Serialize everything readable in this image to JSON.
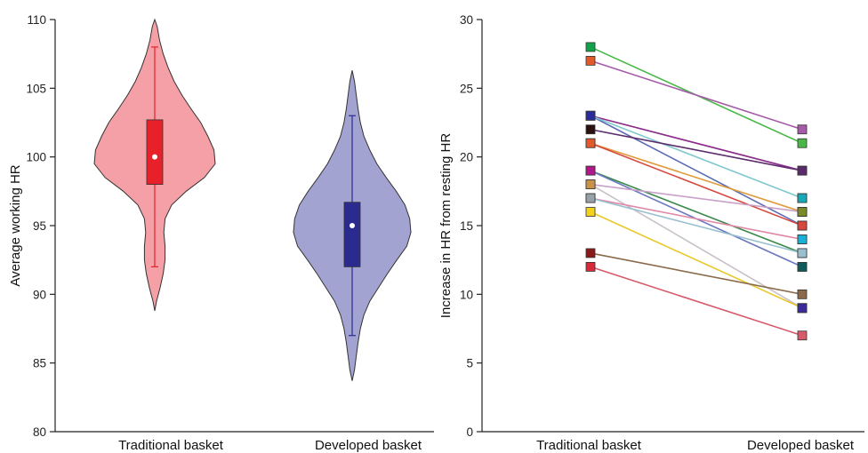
{
  "chart_data": [
    {
      "type": "violin",
      "ylabel": "Average working HR",
      "ylim": [
        80,
        110
      ],
      "yticks": [
        80,
        85,
        90,
        95,
        100,
        105,
        110
      ],
      "categories": [
        "Traditional basket",
        "Developed basket"
      ],
      "groups": [
        {
          "name": "Traditional basket",
          "fill_color": "#f4a0a6",
          "box_color": "#e8202a",
          "median": 100,
          "q1": 98,
          "q3": 102.7,
          "whisker_low": 92,
          "whisker_high": 108,
          "min": 88.8,
          "max": 110,
          "density": [
            [
              88.8,
              0.0
            ],
            [
              89.5,
              0.03
            ],
            [
              90.5,
              0.09
            ],
            [
              91.5,
              0.14
            ],
            [
              92.5,
              0.17
            ],
            [
              93.5,
              0.17
            ],
            [
              94.5,
              0.15
            ],
            [
              95.5,
              0.17
            ],
            [
              96.5,
              0.28
            ],
            [
              97.5,
              0.52
            ],
            [
              98.5,
              0.82
            ],
            [
              99.5,
              1.0
            ],
            [
              100.5,
              0.98
            ],
            [
              101.5,
              0.88
            ],
            [
              102.5,
              0.76
            ],
            [
              103.5,
              0.6
            ],
            [
              104.5,
              0.45
            ],
            [
              105.5,
              0.32
            ],
            [
              106.5,
              0.22
            ],
            [
              107.5,
              0.14
            ],
            [
              108.5,
              0.08
            ],
            [
              109.5,
              0.04
            ],
            [
              110,
              0.0
            ]
          ]
        },
        {
          "name": "Developed basket",
          "fill_color": "#a3a3d1",
          "box_color": "#2b2b8f",
          "median": 95,
          "q1": 92,
          "q3": 96.7,
          "whisker_low": 87,
          "whisker_high": 103,
          "min": 83.7,
          "max": 106.3,
          "density": [
            [
              83.7,
              0.0
            ],
            [
              84.5,
              0.04
            ],
            [
              85.5,
              0.07
            ],
            [
              86.5,
              0.1
            ],
            [
              87.5,
              0.14
            ],
            [
              88.5,
              0.2
            ],
            [
              89.5,
              0.3
            ],
            [
              90.5,
              0.45
            ],
            [
              91.5,
              0.6
            ],
            [
              92.5,
              0.76
            ],
            [
              93.5,
              0.93
            ],
            [
              94.5,
              1.0
            ],
            [
              95.5,
              0.98
            ],
            [
              96.5,
              0.9
            ],
            [
              97.5,
              0.75
            ],
            [
              98.5,
              0.58
            ],
            [
              99.5,
              0.42
            ],
            [
              100.5,
              0.3
            ],
            [
              101.5,
              0.2
            ],
            [
              102.5,
              0.14
            ],
            [
              103.5,
              0.1
            ],
            [
              104.5,
              0.07
            ],
            [
              105.5,
              0.04
            ],
            [
              106.3,
              0.0
            ]
          ]
        }
      ]
    },
    {
      "type": "line",
      "ylabel": "Increase in HR from resting  HR",
      "ylim": [
        0,
        30
      ],
      "yticks": [
        0,
        5,
        10,
        15,
        20,
        25,
        30
      ],
      "categories": [
        "Traditional basket",
        "Developed basket"
      ],
      "series": [
        {
          "values": [
            28,
            21
          ],
          "line_color": "#49b847",
          "marker_color": "#12a34a"
        },
        {
          "values": [
            27,
            22
          ],
          "line_color": "#a55ba8",
          "marker_color": "#e2592b"
        },
        {
          "values": [
            23,
            19
          ],
          "line_color": "#8a2b8a",
          "marker_color": "#2b2b9a"
        },
        {
          "values": [
            23,
            15
          ],
          "line_color": "#5b6bb3",
          "marker_color": "#2b2b9a"
        },
        {
          "values": [
            23,
            17
          ],
          "line_color": "#7fc9cf",
          "marker_color": "#2b2b9a"
        },
        {
          "values": [
            22,
            19
          ],
          "line_color": "#5a2a6b",
          "marker_color": "#2a1010"
        },
        {
          "values": [
            21,
            16
          ],
          "line_color": "#e09a3a",
          "marker_color": "#e2592b"
        },
        {
          "values": [
            21,
            15
          ],
          "line_color": "#d6473e",
          "marker_color": "#e2592b"
        },
        {
          "values": [
            19,
            13
          ],
          "line_color": "#3a8a4a",
          "marker_color": "#b0188a"
        },
        {
          "values": [
            19,
            12
          ],
          "line_color": "#6a78c0",
          "marker_color": "#b0188a"
        },
        {
          "values": [
            18,
            16
          ],
          "line_color": "#c8a0c8",
          "marker_color": "#c8924a"
        },
        {
          "values": [
            18,
            9
          ],
          "line_color": "#c9c0c9",
          "marker_color": "#c8924a"
        },
        {
          "values": [
            17,
            14
          ],
          "line_color": "#e08aa8",
          "marker_color": "#9aa0a8"
        },
        {
          "values": [
            17,
            13
          ],
          "line_color": "#9ac0d0",
          "marker_color": "#9aa0a8"
        },
        {
          "values": [
            16,
            9
          ],
          "line_color": "#e8c82a",
          "marker_color": "#f2d21a"
        },
        {
          "values": [
            13,
            10
          ],
          "line_color": "#8a6a4a",
          "marker_color": "#8a1a1a"
        },
        {
          "values": [
            12,
            7
          ],
          "line_color": "#d65a6a",
          "marker_color": "#d92a3a"
        }
      ],
      "extra_markers": [
        {
          "category": 1,
          "value": 17,
          "marker_color": "#19a9b6"
        },
        {
          "category": 1,
          "value": 16,
          "marker_color": "#7a8a2a"
        },
        {
          "category": 1,
          "value": 14,
          "marker_color": "#19b0d8"
        },
        {
          "category": 1,
          "value": 12,
          "marker_color": "#0f5a5a"
        },
        {
          "category": 1,
          "value": 9,
          "marker_color": "#3a2a9a"
        }
      ]
    }
  ]
}
